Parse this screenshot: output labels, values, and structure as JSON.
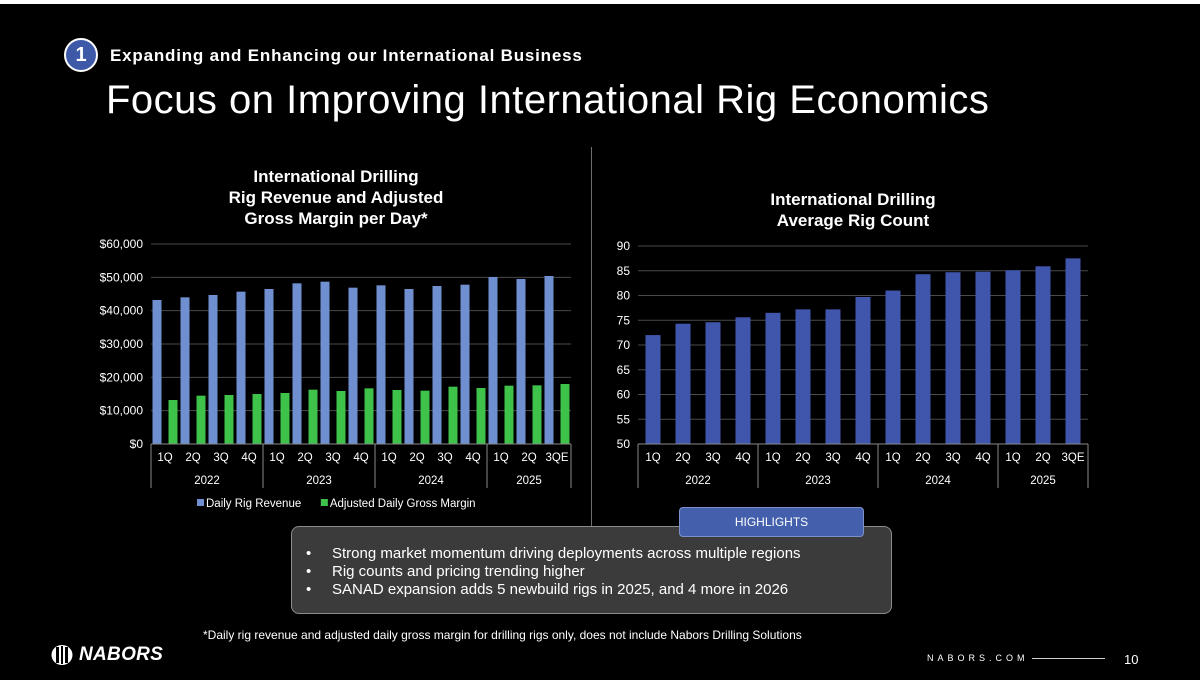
{
  "header": {
    "section_number": "1",
    "section_title": "Expanding and Enhancing our International Business",
    "title": "Focus on Improving International Rig Economics"
  },
  "colors": {
    "background": "#000000",
    "revenue_bar": "#6f8fd0",
    "margin_bar": "#3ec24a",
    "rig_count_bar": "#4056ad",
    "highlight_tab": "#4460ad",
    "highlight_box": "#3b3b3b"
  },
  "chart_data": [
    {
      "type": "bar",
      "title": "International Drilling Rig Revenue and Adjusted Gross Margin per Day*",
      "title_lines": [
        "International Drilling",
        "Rig Revenue and Adjusted",
        "Gross Margin per Day*"
      ],
      "categories": [
        "1Q",
        "2Q",
        "3Q",
        "4Q",
        "1Q",
        "2Q",
        "3Q",
        "4Q",
        "1Q",
        "2Q",
        "3Q",
        "4Q",
        "1Q",
        "2Q",
        "3QE"
      ],
      "groups": [
        {
          "label": "2022",
          "count": 4
        },
        {
          "label": "2023",
          "count": 4
        },
        {
          "label": "2024",
          "count": 4
        },
        {
          "label": "2025",
          "count": 3
        }
      ],
      "series": [
        {
          "name": "Daily Rig Revenue",
          "color": "#6f8fd0",
          "values": [
            43200,
            44000,
            44700,
            45700,
            46500,
            48200,
            48700,
            46900,
            47600,
            46500,
            47400,
            47800,
            50100,
            49500,
            50400
          ]
        },
        {
          "name": "Adjusted Daily Gross Margin",
          "color": "#3ec24a",
          "values": [
            13200,
            14500,
            14700,
            15000,
            15300,
            16300,
            15900,
            16700,
            16200,
            16000,
            17200,
            16800,
            17500,
            17600,
            18000
          ]
        }
      ],
      "ylim": [
        0,
        60000
      ],
      "yticks": [
        0,
        10000,
        20000,
        30000,
        40000,
        50000,
        60000
      ],
      "ytick_labels": [
        "$0",
        "$10,000",
        "$20,000",
        "$30,000",
        "$40,000",
        "$50,000",
        "$60,000"
      ],
      "xlabel": "",
      "ylabel": "",
      "legend": "bottom",
      "grid": true
    },
    {
      "type": "bar",
      "title": "International Drilling Average Rig Count",
      "title_lines": [
        "International Drilling",
        "Average Rig Count"
      ],
      "categories": [
        "1Q",
        "2Q",
        "3Q",
        "4Q",
        "1Q",
        "2Q",
        "3Q",
        "4Q",
        "1Q",
        "2Q",
        "3Q",
        "4Q",
        "1Q",
        "2Q",
        "3QE"
      ],
      "groups": [
        {
          "label": "2022",
          "count": 4
        },
        {
          "label": "2023",
          "count": 4
        },
        {
          "label": "2024",
          "count": 4
        },
        {
          "label": "2025",
          "count": 3
        }
      ],
      "series": [
        {
          "name": "Average Rig Count",
          "color": "#4056ad",
          "values": [
            72.0,
            74.3,
            74.6,
            75.6,
            76.5,
            77.2,
            77.2,
            79.7,
            81.0,
            84.3,
            84.7,
            84.8,
            85.1,
            85.9,
            87.5
          ]
        }
      ],
      "ylim": [
        50,
        90
      ],
      "yticks": [
        50,
        55,
        60,
        65,
        70,
        75,
        80,
        85,
        90
      ],
      "ytick_labels": [
        "50",
        "55",
        "60",
        "65",
        "70",
        "75",
        "80",
        "85",
        "90"
      ],
      "xlabel": "",
      "ylabel": "",
      "legend": "none",
      "grid": true
    }
  ],
  "highlights": {
    "tab_label": "HIGHLIGHTS",
    "items": [
      "Strong market momentum driving deployments across multiple regions",
      "Rig counts and pricing trending higher",
      "SANAD expansion adds 5 newbuild rigs in 2025, and 4 more in 2026"
    ]
  },
  "footer": {
    "footnote": "*Daily rig revenue and adjusted daily gross margin for drilling rigs only, does not include Nabors Drilling Solutions",
    "logo_text": "NABORS",
    "website": "NABORS.COM",
    "page_number": "10"
  }
}
